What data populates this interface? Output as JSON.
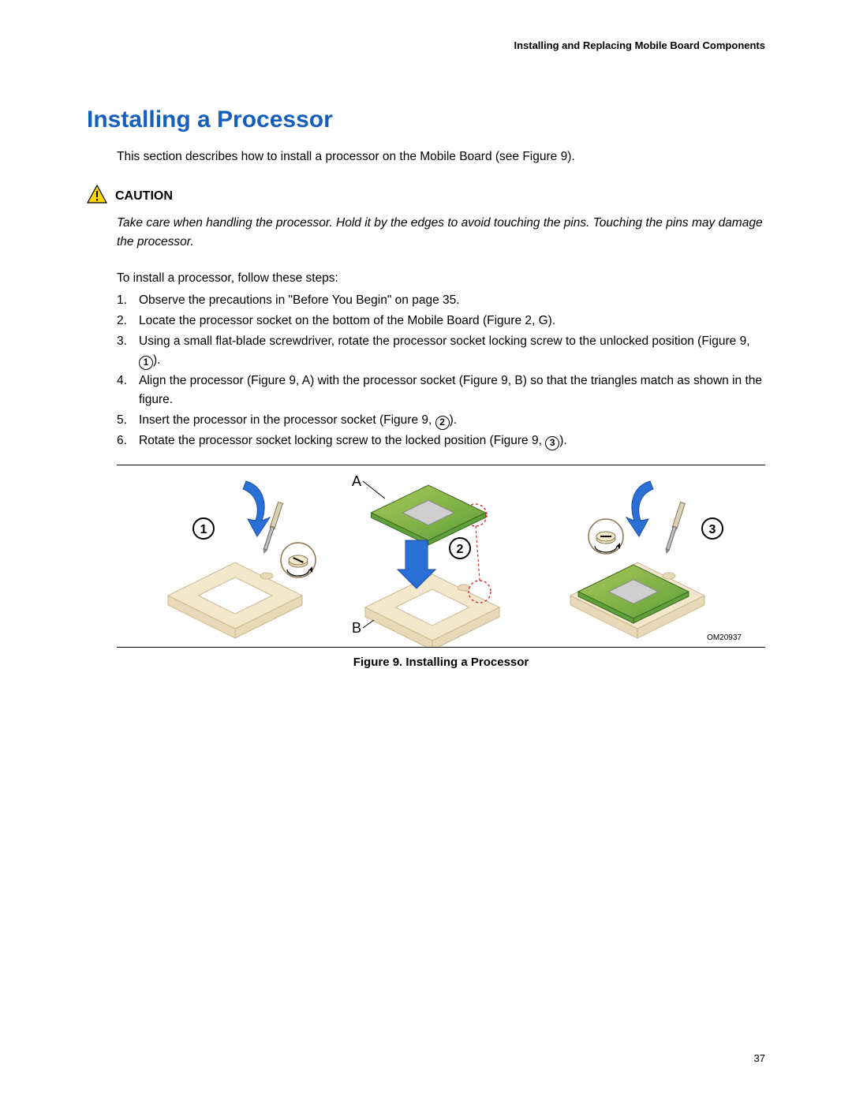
{
  "header": {
    "chapter_title": "Installing and Replacing Mobile Board Components"
  },
  "heading": {
    "text": "Installing a Processor",
    "color": "#1560bd"
  },
  "intro": "This section describes how to install a processor on the Mobile Board (see Figure 9).",
  "caution": {
    "label": "CAUTION",
    "text": "Take care when handling the processor.  Hold it by the edges to avoid touching the pins.  Touching the pins may damage the processor.",
    "icon_bg": "#ffd400",
    "icon_border": "#000000"
  },
  "steps_intro": "To install a processor, follow these steps:",
  "steps": [
    {
      "n": "1.",
      "text": "Observe the precautions in \"Before You Begin\" on page 35."
    },
    {
      "n": "2.",
      "text": "Locate the processor socket on the bottom of the Mobile Board (Figure 2, G)."
    },
    {
      "n": "3.",
      "text": "Using a small flat-blade screwdriver, rotate the processor socket locking screw to the unlocked position (Figure 9, ",
      "circ": "1",
      "tail": ")."
    },
    {
      "n": "4.",
      "text": "Align the processor (Figure 9, A) with the processor socket (Figure 9, B) so that the triangles match as shown in the figure."
    },
    {
      "n": "5.",
      "text": "Insert the processor in the processor socket (Figure 9, ",
      "circ": "2",
      "tail": ")."
    },
    {
      "n": "6.",
      "text": "Rotate the processor socket locking screw to the locked position (Figure 9, ",
      "circ": "3",
      "tail": ")."
    }
  ],
  "figure": {
    "caption": "Figure 9.  Installing a Processor",
    "om": "OM20937",
    "labels": {
      "A": "A",
      "B": "B",
      "c1": "1",
      "c2": "2",
      "c3": "3"
    },
    "colors": {
      "socket_side": "#e8d9b8",
      "socket_top": "#f3e8cc",
      "socket_edge": "#c9b98f",
      "chip_green1": "#5fa03a",
      "chip_green2": "#a8c858",
      "chip_die": "#cfcfcf",
      "arrow_blue": "#2a6fd6",
      "arrow_blue_dark": "#1a4fa8",
      "inset_stroke": "#8a7a52",
      "dash_red": "#e03030"
    }
  },
  "page_number": "37"
}
